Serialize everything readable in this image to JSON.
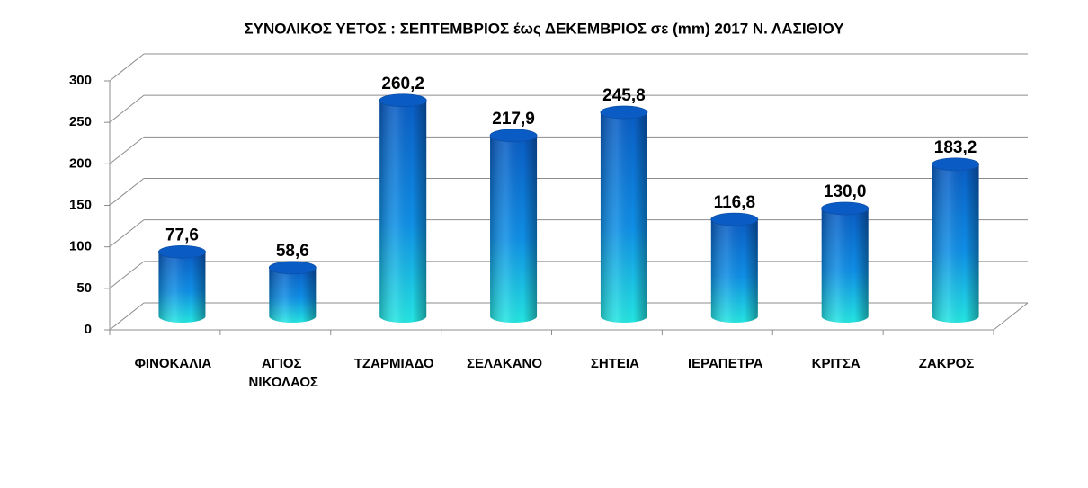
{
  "chart_data": {
    "type": "bar",
    "title": "ΣΥΝΟΛΙΚΟΣ ΥΕΤΟΣ : ΣΕΠΤΕΜΒΡΙΟΣ έως  ΔΕΚΕΜΒΡΙΟΣ σε  (mm) 2017 Ν. ΛΑΣΙΘΙΟΥ",
    "categories": [
      "ΦΙΝΟΚΑΛΙΑ",
      "ΑΓΙΟΣ ΝΙΚΟΛΑΟΣ",
      "ΤΖΑΡΜΙΑΔΟ",
      "ΣΕΛΑΚΑΝΟ",
      "ΣΗΤΕΙΑ",
      "ΙΕΡΑΠΕΤΡΑ",
      "ΚΡΙΤΣΑ",
      "ΖΑΚΡΟΣ"
    ],
    "values": [
      77.6,
      58.6,
      260.2,
      217.9,
      245.8,
      116.8,
      130.0,
      183.2
    ],
    "value_labels": [
      "77,6",
      "58,6",
      "260,2",
      "217,9",
      "245,8",
      "116,8",
      "130,0",
      "183,2"
    ],
    "ylim": [
      0,
      300
    ],
    "yticks": [
      0,
      50,
      100,
      150,
      200,
      250,
      300
    ],
    "grid": true
  }
}
